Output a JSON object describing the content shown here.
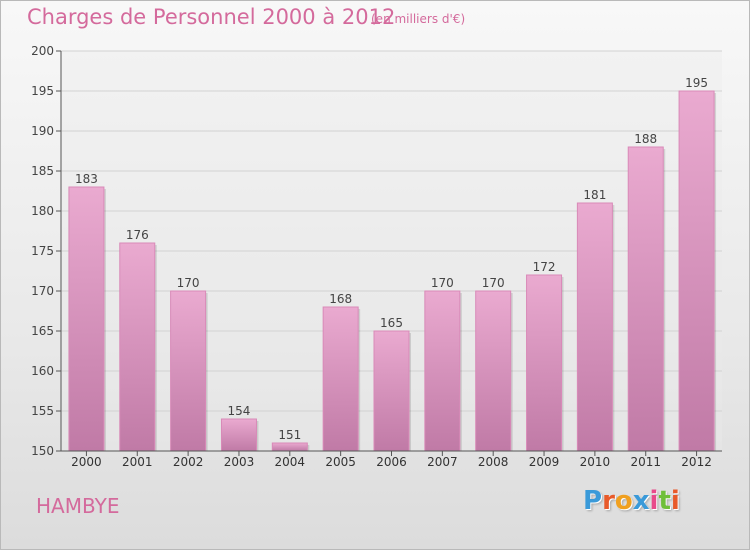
{
  "header": {
    "title": "Charges de Personnel 2000 à 2012",
    "subtitle": "(en milliers d'€)"
  },
  "footer": {
    "commune": "HAMBYE",
    "logo_letters": [
      "P",
      "r",
      "o",
      "x",
      "i",
      "t",
      "i"
    ],
    "logo_colors": [
      "#3a9ad9",
      "#e85a2a",
      "#f0a020",
      "#3a9ad9",
      "#e84a8a",
      "#6fbf3a",
      "#e85a2a"
    ]
  },
  "colors": {
    "bar_top": "#eaaad0",
    "bar_bottom": "#c07aa6",
    "title": "#d46a9c",
    "grid": "#d2d2d2"
  },
  "chart_data": {
    "type": "bar",
    "categories": [
      "2000",
      "2001",
      "2002",
      "2003",
      "2004",
      "2005",
      "2006",
      "2007",
      "2008",
      "2009",
      "2010",
      "2011",
      "2012"
    ],
    "values": [
      183,
      176,
      170,
      154,
      151,
      168,
      165,
      170,
      170,
      172,
      181,
      188,
      195
    ],
    "yticks": [
      150,
      155,
      160,
      165,
      170,
      175,
      180,
      185,
      190,
      195,
      200
    ],
    "ylim": [
      150,
      200
    ],
    "grid": true,
    "legend": "none",
    "title": "Charges de Personnel 2000 à 2012",
    "xlabel": "",
    "ylabel": ""
  }
}
